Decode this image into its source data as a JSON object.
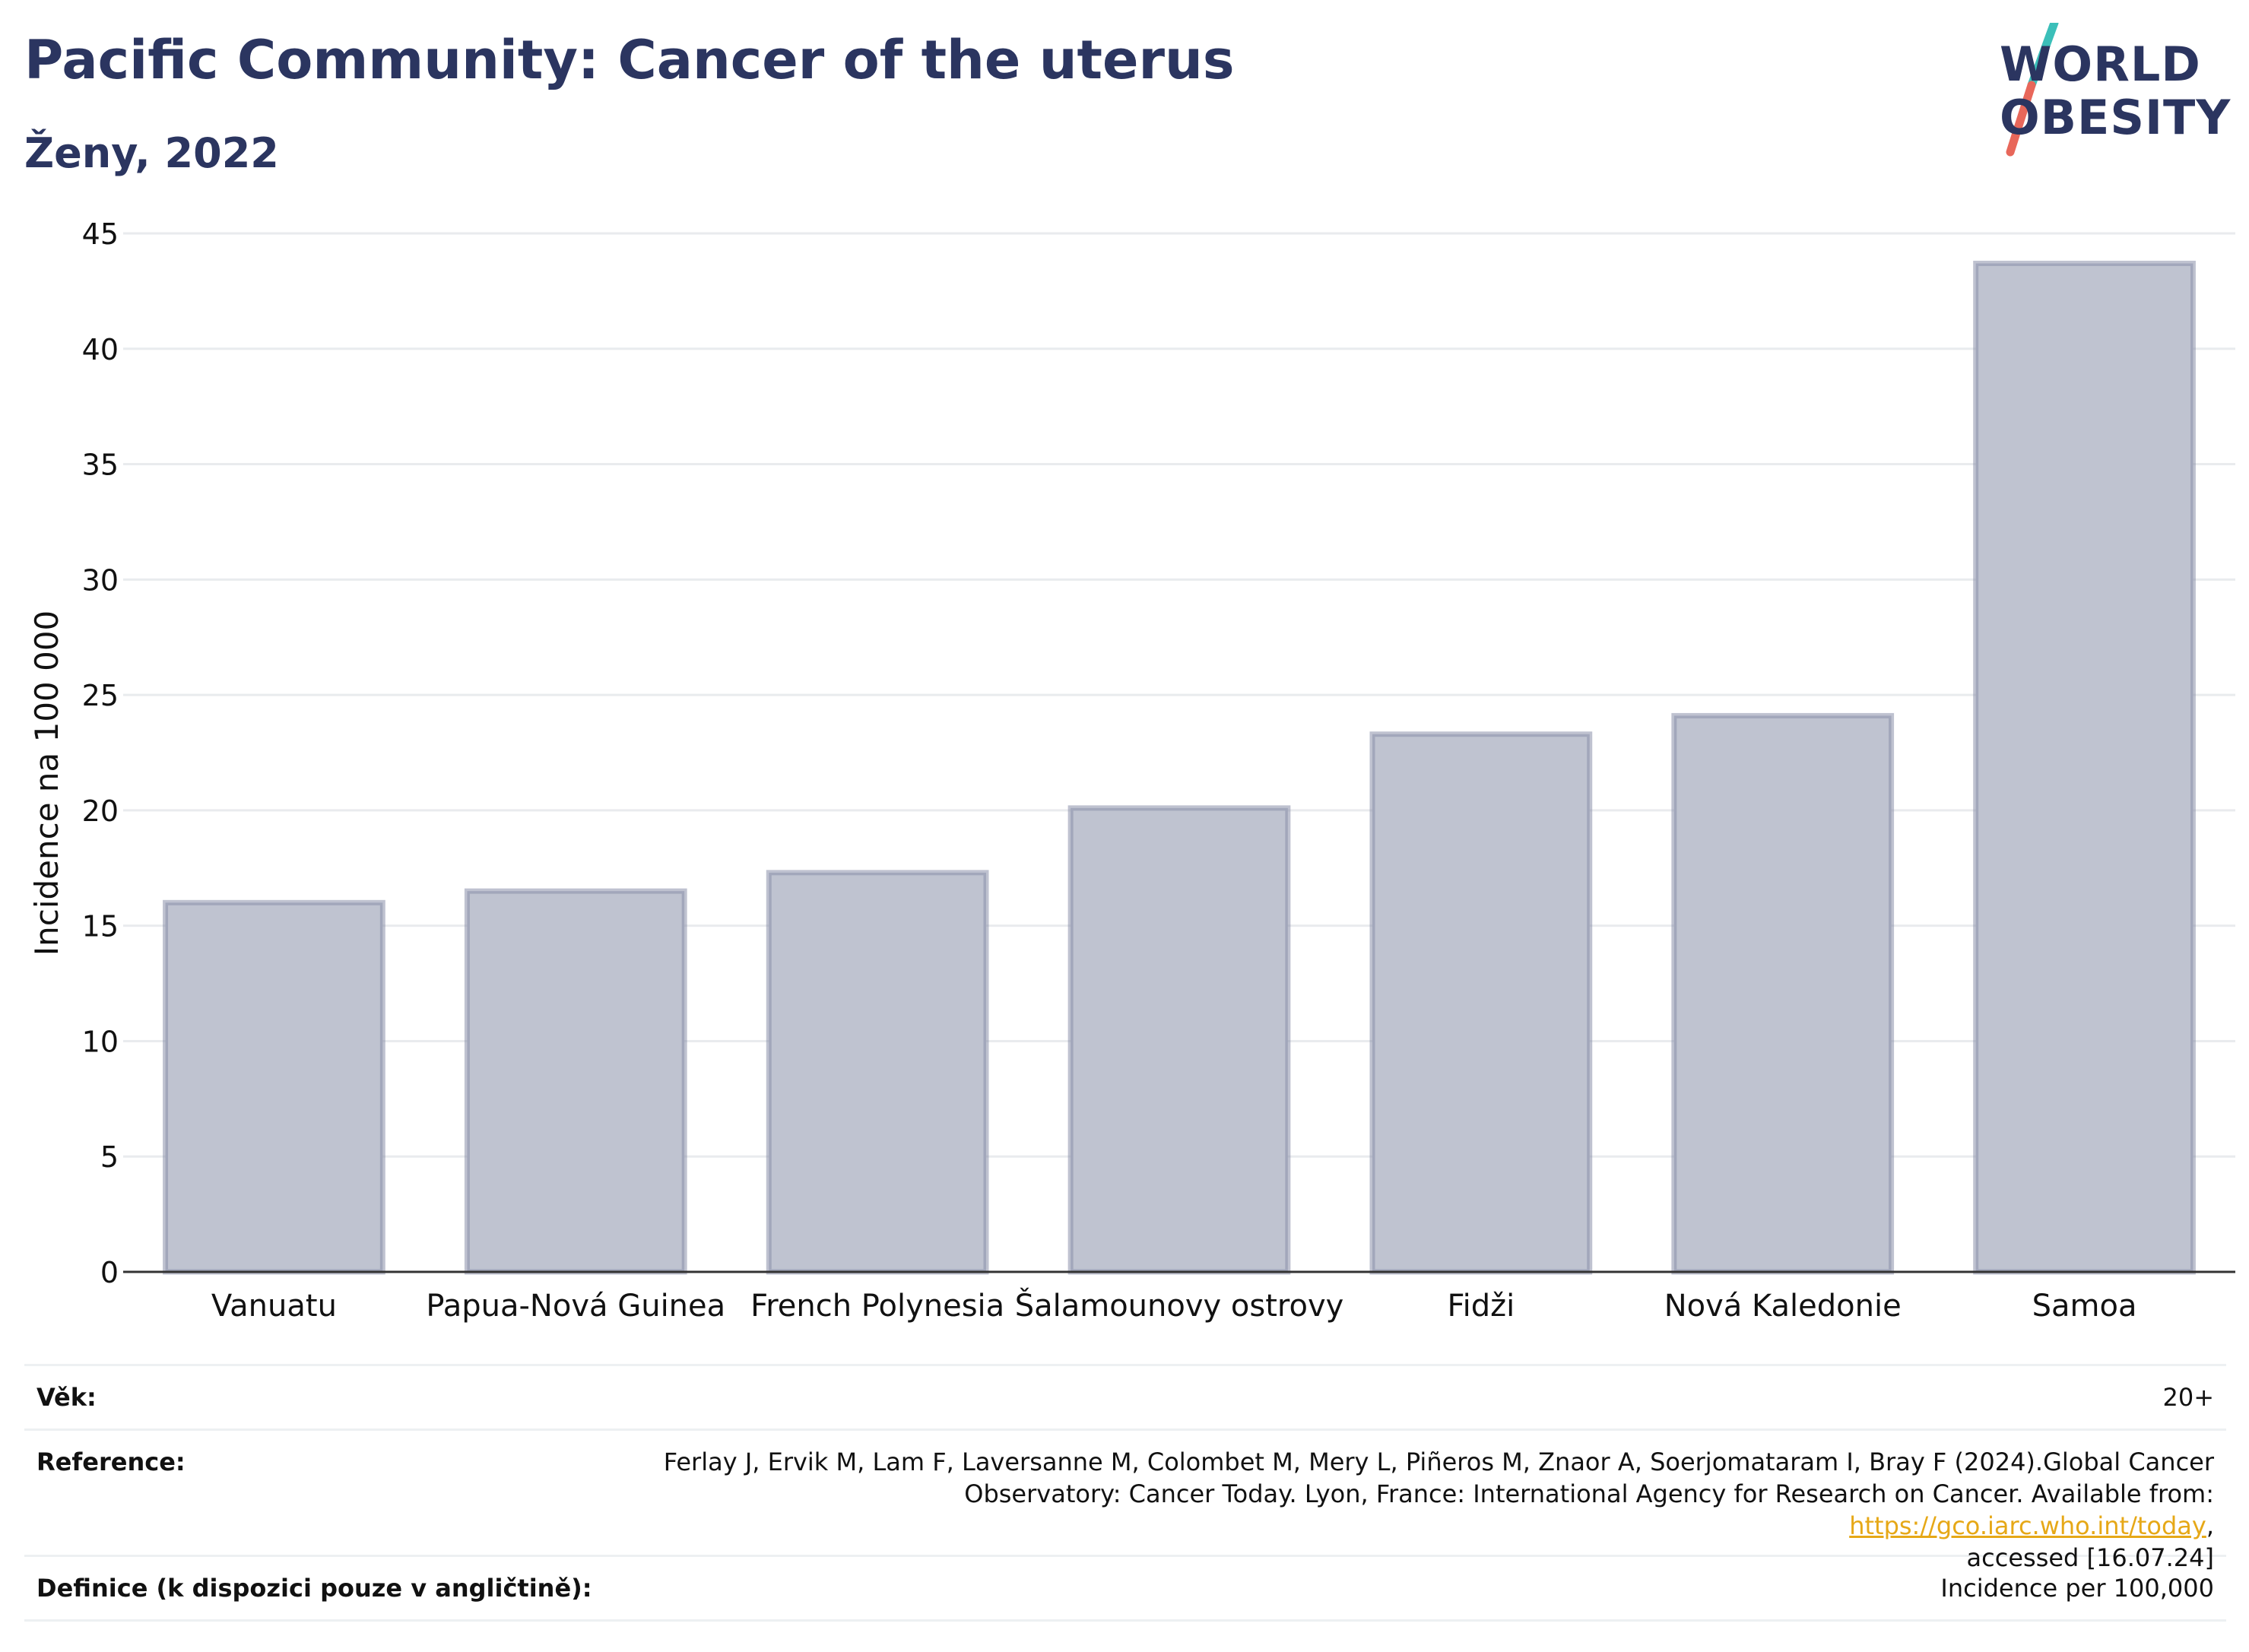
{
  "header": {
    "title": "Pacific Community: Cancer of the uterus",
    "subtitle": "Ženy, 2022"
  },
  "logo": {
    "line1": "WORLD",
    "line2": "OBESITY",
    "colors": {
      "text": "#2b3560",
      "slash_top": "#3bbfb9",
      "slash_bottom": "#e8675a"
    }
  },
  "chart_data": {
    "type": "bar",
    "categories": [
      "Vanuatu",
      "Papua-Nová Guinea",
      "French Polynesia",
      "Šalamounovy ostrovy",
      "Fidži",
      "Nová Kaledonie",
      "Samoa"
    ],
    "values": [
      16.0,
      16.5,
      17.3,
      20.1,
      23.3,
      24.1,
      43.7
    ],
    "ylabel": "Incidence na 100 000",
    "xlabel": "",
    "ylim": [
      0,
      45
    ],
    "yticks": [
      0,
      5,
      10,
      15,
      20,
      25,
      30,
      35,
      40,
      45
    ],
    "grid": true,
    "bar_fill": "#bfc3d0",
    "bar_stroke": "#8a90aa"
  },
  "footer": {
    "age_label": "Věk:",
    "age_value": "20+",
    "ref_label": "Reference:",
    "ref_line1": "Ferlay J, Ervik M, Lam F, Laversanne M, Colombet M, Mery L, Piñeros M, Znaor A, Soerjomataram I, Bray F (2024).Global Cancer",
    "ref_line2_pre": "Observatory: Cancer Today. Lyon, France: International Agency for Research on Cancer. Available from: ",
    "ref_link": "https://gco.iarc.who.int/today",
    "ref_line2_post": ",",
    "ref_line3": "accessed [16.07.24]",
    "def_label": "Definice (k dispozici pouze v angličtině):",
    "def_value": "Incidence per 100,000"
  }
}
